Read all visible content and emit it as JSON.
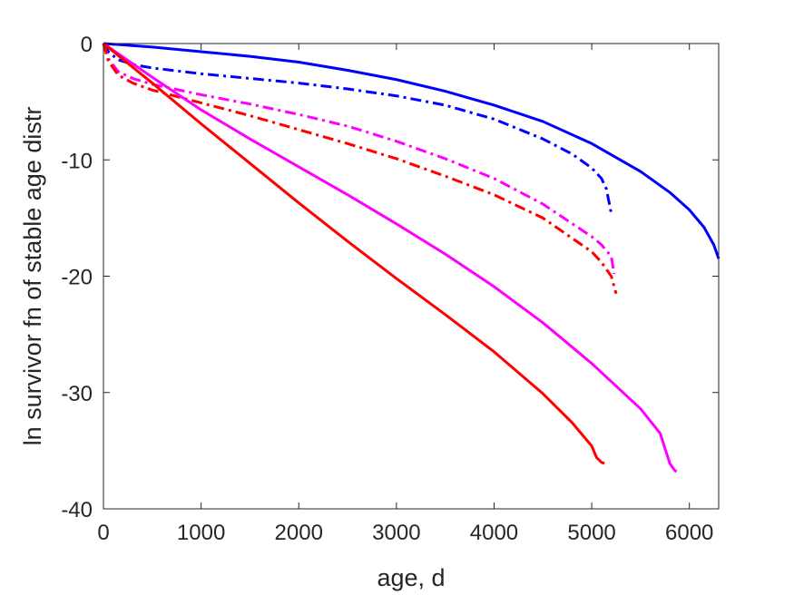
{
  "chart_data": {
    "type": "line",
    "xlabel": "age, d",
    "ylabel": "ln survivor fn of stable age distr",
    "xlim": [
      0,
      6300
    ],
    "ylim": [
      -40,
      0
    ],
    "xticks": [
      0,
      1000,
      2000,
      3000,
      4000,
      5000,
      6000
    ],
    "yticks": [
      0,
      -10,
      -20,
      -30,
      -40
    ],
    "xtick_labels": [
      "0",
      "1000",
      "2000",
      "3000",
      "4000",
      "5000",
      "6000"
    ],
    "ytick_labels": [
      "0",
      "-10",
      "-20",
      "-30",
      "-40"
    ],
    "grid": false,
    "legend": "none",
    "series": [
      {
        "color": "#0000ff",
        "style": "solid",
        "x": [
          0,
          500,
          1000,
          1500,
          2000,
          2500,
          3000,
          3500,
          4000,
          4500,
          5000,
          5500,
          5800,
          6000,
          6150,
          6250,
          6300
        ],
        "y": [
          0,
          -0.3,
          -0.7,
          -1.1,
          -1.6,
          -2.3,
          -3.1,
          -4.1,
          -5.3,
          -6.7,
          -8.6,
          -11.0,
          -12.8,
          -14.3,
          -15.8,
          -17.3,
          -18.5
        ]
      },
      {
        "color": "#0000ff",
        "style": "dashdot",
        "x": [
          0,
          50,
          150,
          300,
          500,
          1000,
          1500,
          2000,
          2500,
          3000,
          3500,
          4000,
          4500,
          4800,
          5000,
          5100,
          5150,
          5200
        ],
        "y": [
          0,
          -0.7,
          -1.4,
          -1.8,
          -2.1,
          -2.6,
          -3.0,
          -3.4,
          -3.9,
          -4.5,
          -5.3,
          -6.5,
          -8.2,
          -9.5,
          -10.7,
          -11.6,
          -12.5,
          -14.6
        ]
      },
      {
        "color": "#ff00ff",
        "style": "dashdot",
        "x": [
          0,
          50,
          150,
          300,
          500,
          1000,
          1500,
          2000,
          2500,
          3000,
          3500,
          4000,
          4500,
          5000,
          5100,
          5200,
          5230
        ],
        "y": [
          0,
          -1.3,
          -2.4,
          -3.0,
          -3.5,
          -4.4,
          -5.2,
          -6.1,
          -7.1,
          -8.4,
          -9.9,
          -11.6,
          -13.8,
          -16.6,
          -17.3,
          -18.3,
          -19.8
        ]
      },
      {
        "color": "#ff0000",
        "style": "dashdot",
        "x": [
          0,
          50,
          150,
          300,
          500,
          1000,
          1500,
          2000,
          2500,
          3000,
          3500,
          4000,
          4500,
          5000,
          5100,
          5200,
          5250
        ],
        "y": [
          0,
          -1.5,
          -2.7,
          -3.4,
          -4.0,
          -5.1,
          -6.2,
          -7.4,
          -8.6,
          -9.9,
          -11.4,
          -13.0,
          -15.0,
          -17.9,
          -18.8,
          -20.0,
          -21.5
        ]
      },
      {
        "color": "#ff00ff",
        "style": "solid",
        "x": [
          0,
          500,
          1000,
          1500,
          2000,
          2500,
          3000,
          3500,
          4000,
          4500,
          5000,
          5500,
          5700,
          5750,
          5800,
          5850,
          5870
        ],
        "y": [
          0,
          -2.9,
          -5.7,
          -8.2,
          -10.6,
          -13.0,
          -15.5,
          -18.1,
          -20.9,
          -24.0,
          -27.5,
          -31.4,
          -33.5,
          -34.8,
          -36.1,
          -36.7,
          -36.8
        ]
      },
      {
        "color": "#ff0000",
        "style": "solid",
        "x": [
          0,
          500,
          1000,
          1500,
          2000,
          2500,
          3000,
          3500,
          4000,
          4500,
          4800,
          5000,
          5050,
          5100,
          5130
        ],
        "y": [
          0,
          -3.4,
          -6.9,
          -10.3,
          -13.7,
          -17.0,
          -20.2,
          -23.3,
          -26.5,
          -30.1,
          -32.6,
          -34.6,
          -35.6,
          -36.0,
          -36.1
        ]
      }
    ]
  }
}
